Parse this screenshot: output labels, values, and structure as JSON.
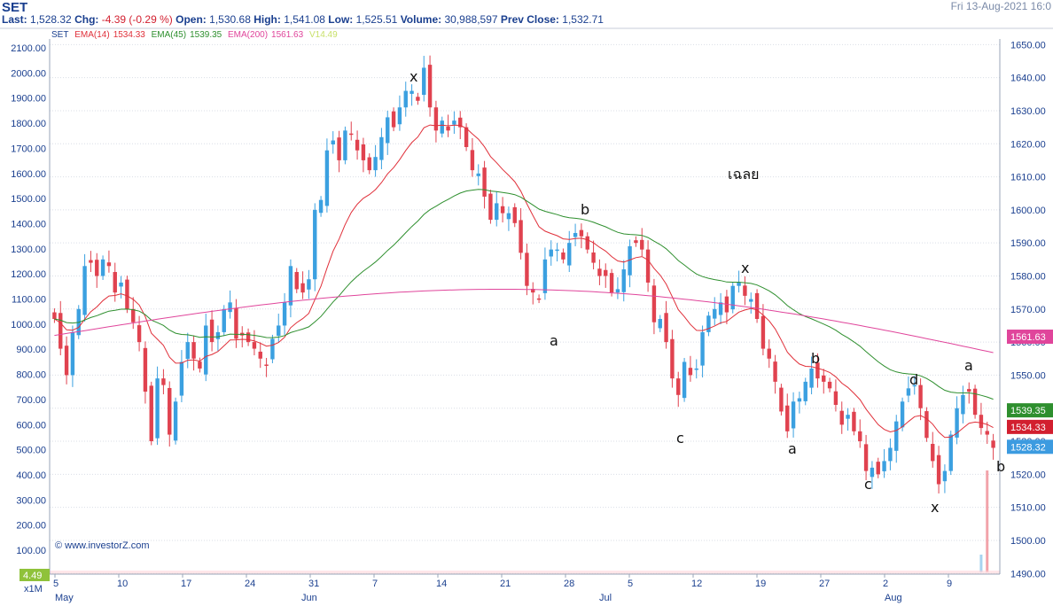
{
  "header": {
    "symbol": "SET",
    "last_label": "Last:",
    "last": "1,528.32",
    "chg_label": "Chg:",
    "chg": "-4.39 (-0.29 %)",
    "open_label": "Open:",
    "open": "1,530.68",
    "high_label": "High:",
    "high": "1,541.08",
    "low_label": "Low:",
    "low": "1,525.51",
    "vol_label": "Volume:",
    "volume": "30,988,597",
    "prev_label": "Prev Close:",
    "prev_close": "1,532.71",
    "date": "Fri 13-Aug-2021 16:0"
  },
  "legend": {
    "symbol": "SET",
    "ema14_label": "EMA(14)",
    "ema14_value": "1534.33",
    "ema45_label": "EMA(45)",
    "ema45_value": "1539.35",
    "ema200_label": "EMA(200)",
    "ema200_value": "1561.63",
    "vol_value": "V14.49"
  },
  "watermark": "© www.investorZ.com",
  "colors": {
    "up": "#3ba0e0",
    "down": "#e0424f",
    "ema14": "#e0303a",
    "ema45": "#2e8f2e",
    "ema200": "#e0459b",
    "axis_text": "#1a3f8f",
    "grid": "#d9dee6",
    "bg": "#ffffff"
  },
  "chart_data": {
    "type": "candlestick",
    "title": "SET",
    "right_axis": {
      "ticks": [
        1490,
        1500,
        1510,
        1520,
        1530,
        1540,
        1550,
        1560,
        1570,
        1580,
        1590,
        1600,
        1610,
        1620,
        1630,
        1640,
        1650
      ],
      "labels": [
        "1490.00",
        "1500.00",
        "1510.00",
        "1520.00",
        "1530.00",
        "1540.00",
        "1550.00",
        "1560.00",
        "1570.00",
        "1580.00",
        "1590.00",
        "1600.00",
        "1610.00",
        "1620.00",
        "1630.00",
        "1640.00",
        "1650.00"
      ],
      "ylim": [
        1489.8,
        1651.7
      ]
    },
    "left_axis": {
      "labels": [
        "100.00",
        "200.00",
        "300.00",
        "400.00",
        "500.00",
        "600.00",
        "700.00",
        "800.00",
        "900.00",
        "1000.00",
        "1100.00",
        "1200.00",
        "1300.00",
        "1400.00",
        "1500.00",
        "1600.00",
        "1700.00",
        "1800.00",
        "1900.00",
        "2000.00",
        "2100.00"
      ],
      "unit": "volume (M)"
    },
    "x_ticks": [
      "5",
      "10",
      "17",
      "24",
      "31",
      "7",
      "14",
      "21",
      "28",
      "5",
      "12",
      "19",
      "27",
      "2",
      "9"
    ],
    "months": [
      "May",
      "Jun",
      "Jul",
      "Aug"
    ],
    "badges": {
      "ema200": "1561.63",
      "ema45": "1539.35",
      "ema14": "1534.33",
      "last": "1528.32",
      "vol": "4.49",
      "vol_unit": "x1M"
    },
    "ohlc_close": [
      1567,
      1558,
      1550,
      1563,
      1570,
      1583,
      1584,
      1580,
      1585,
      1583,
      1575,
      1578,
      1570,
      1566,
      1560,
      1545,
      1530,
      1549,
      1547,
      1532,
      1542,
      1554,
      1560,
      1555,
      1552,
      1565,
      1560,
      1563,
      1570,
      1572,
      1561,
      1562,
      1560,
      1558,
      1555,
      1553,
      1561,
      1565,
      1572,
      1583,
      1576,
      1575,
      1579,
      1600,
      1603,
      1618,
      1621,
      1615,
      1624,
      1623,
      1618,
      1615,
      1612,
      1616,
      1622,
      1628,
      1625,
      1631,
      1636,
      1636,
      1633,
      1643,
      1631,
      1624,
      1627,
      1624,
      1627,
      1625,
      1619,
      1612,
      1611,
      1604,
      1597,
      1602,
      1599,
      1599,
      1596,
      1587,
      1577,
      1575,
      1573,
      1585,
      1588,
      1588,
      1585,
      1590,
      1593,
      1592,
      1588,
      1584,
      1580,
      1580,
      1575,
      1576,
      1582,
      1589,
      1590,
      1588,
      1578,
      1566,
      1567,
      1560,
      1549,
      1544,
      1554,
      1550,
      1552,
      1563,
      1568,
      1570,
      1572,
      1569,
      1577,
      1578,
      1574,
      1573,
      1567,
      1558,
      1555,
      1548,
      1539,
      1533,
      1542,
      1543,
      1548,
      1552,
      1549,
      1548,
      1546,
      1541,
      1535,
      1538,
      1533,
      1530,
      1521,
      1522,
      1520,
      1524,
      1528,
      1536,
      1542,
      1546,
      1547,
      1540,
      1531,
      1524,
      1517,
      1521,
      1532,
      1540,
      1544,
      1545,
      1538,
      1534,
      1532,
      1528
    ],
    "annotations": [
      "x",
      "b",
      "a",
      "c",
      "x",
      "b",
      "a",
      "c",
      "d",
      "x",
      "a",
      "b",
      "เฉลย"
    ]
  }
}
